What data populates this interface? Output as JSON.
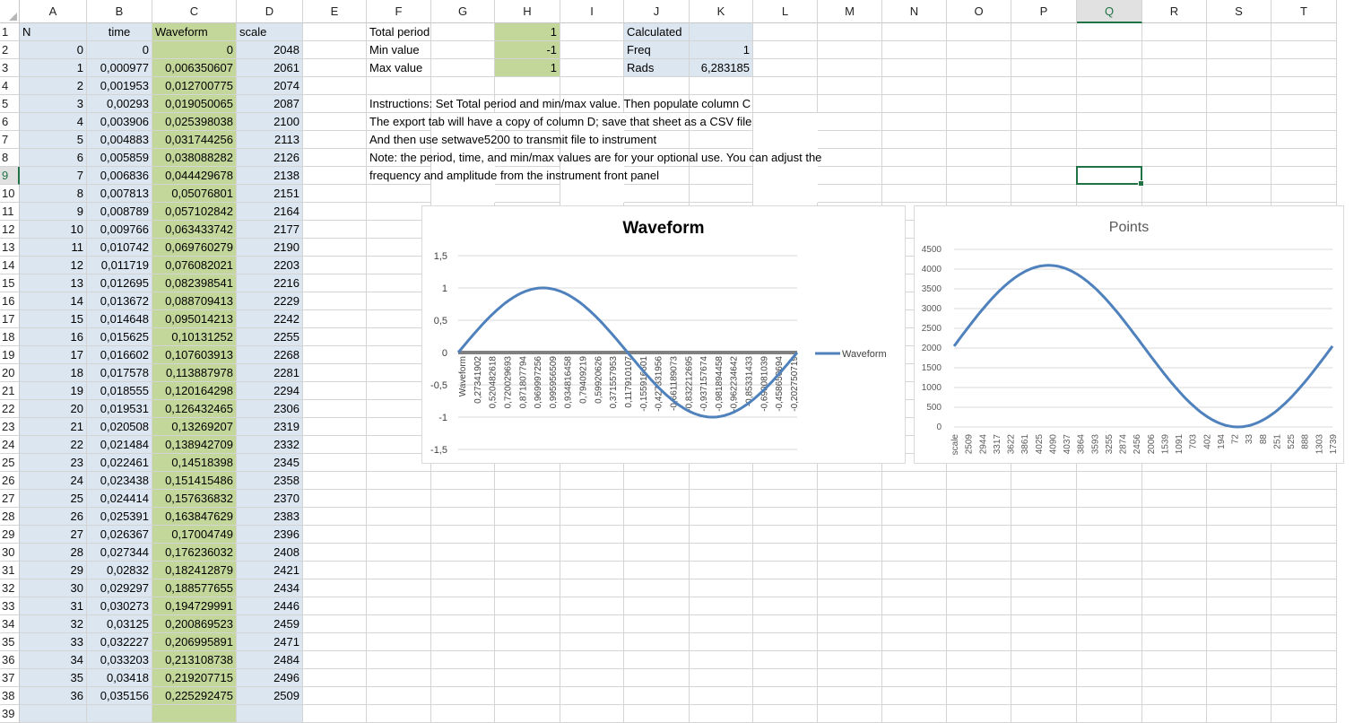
{
  "columns": [
    "A",
    "B",
    "C",
    "D",
    "E",
    "F",
    "G",
    "H",
    "I",
    "J",
    "K",
    "L",
    "M",
    "N",
    "O",
    "P",
    "Q",
    "R",
    "S",
    "T"
  ],
  "selected_column": "Q",
  "selected_row": 9,
  "headers": {
    "n": "N",
    "time": "time",
    "waveform": "Waveform",
    "scale": "scale"
  },
  "rows": [
    [
      "0",
      "0",
      "0",
      "2048"
    ],
    [
      "1",
      "0,000977",
      "0,006350607",
      "2061"
    ],
    [
      "2",
      "0,001953",
      "0,012700775",
      "2074"
    ],
    [
      "3",
      "0,00293",
      "0,019050065",
      "2087"
    ],
    [
      "4",
      "0,003906",
      "0,025398038",
      "2100"
    ],
    [
      "5",
      "0,004883",
      "0,031744256",
      "2113"
    ],
    [
      "6",
      "0,005859",
      "0,038088282",
      "2126"
    ],
    [
      "7",
      "0,006836",
      "0,044429678",
      "2138"
    ],
    [
      "8",
      "0,007813",
      "0,05076801",
      "2151"
    ],
    [
      "9",
      "0,008789",
      "0,057102842",
      "2164"
    ],
    [
      "10",
      "0,009766",
      "0,063433742",
      "2177"
    ],
    [
      "11",
      "0,010742",
      "0,069760279",
      "2190"
    ],
    [
      "12",
      "0,011719",
      "0,076082021",
      "2203"
    ],
    [
      "13",
      "0,012695",
      "0,082398541",
      "2216"
    ],
    [
      "14",
      "0,013672",
      "0,088709413",
      "2229"
    ],
    [
      "15",
      "0,014648",
      "0,095014213",
      "2242"
    ],
    [
      "16",
      "0,015625",
      "0,10131252",
      "2255"
    ],
    [
      "17",
      "0,016602",
      "0,107603913",
      "2268"
    ],
    [
      "18",
      "0,017578",
      "0,113887978",
      "2281"
    ],
    [
      "19",
      "0,018555",
      "0,120164298",
      "2294"
    ],
    [
      "20",
      "0,019531",
      "0,126432465",
      "2306"
    ],
    [
      "21",
      "0,020508",
      "0,13269207",
      "2319"
    ],
    [
      "22",
      "0,021484",
      "0,138942709",
      "2332"
    ],
    [
      "23",
      "0,022461",
      "0,14518398",
      "2345"
    ],
    [
      "24",
      "0,023438",
      "0,151415486",
      "2358"
    ],
    [
      "25",
      "0,024414",
      "0,157636832",
      "2370"
    ],
    [
      "26",
      "0,025391",
      "0,163847629",
      "2383"
    ],
    [
      "27",
      "0,026367",
      "0,17004749",
      "2396"
    ],
    [
      "28",
      "0,027344",
      "0,176236032",
      "2408"
    ],
    [
      "29",
      "0,02832",
      "0,182412879",
      "2421"
    ],
    [
      "30",
      "0,029297",
      "0,188577655",
      "2434"
    ],
    [
      "31",
      "0,030273",
      "0,194729991",
      "2446"
    ],
    [
      "32",
      "0,03125",
      "0,200869523",
      "2459"
    ],
    [
      "33",
      "0,032227",
      "0,206995891",
      "2471"
    ],
    [
      "34",
      "0,033203",
      "0,213108738",
      "2484"
    ],
    [
      "35",
      "0,03418",
      "0,219207715",
      "2496"
    ],
    [
      "36",
      "0,035156",
      "0,225292475",
      "2509"
    ]
  ],
  "params": {
    "total_period_label": "Total period",
    "total_period_value": "1",
    "min_value_label": "Min value",
    "min_value_value": "-1",
    "max_value_label": "Max value",
    "max_value_value": "1"
  },
  "calculated": {
    "title": "Calculated",
    "freq_label": "Freq",
    "freq_value": "1",
    "rads_label": "Rads",
    "rads_value": "6,283185"
  },
  "instructions": [
    "Instructions: Set Total period and min/max value. Then populate column C",
    "The export tab will have a copy of column D; save that sheet as a CSV file",
    "And then use setwave5200 to transmit file to instrument",
    "Note: the period, time, and min/max values are for your optional use.  You can adjust the",
    "frequency and amplitude from the instrument front panel"
  ],
  "chart_data": [
    {
      "type": "line",
      "title": "Waveform",
      "series": [
        {
          "name": "Waveform",
          "function": "sin",
          "periods": 1,
          "amplitude": 1
        }
      ],
      "ylim": [
        -1.5,
        1.5
      ],
      "y_ticks": [
        "1,5",
        "1",
        "0,5",
        "0",
        "-0,5",
        "-1",
        "-1,5"
      ],
      "x_tick_labels": [
        "Waveform",
        "0,27341902",
        "0,520482618",
        "0,720029693",
        "0,871807794",
        "0,969997256",
        "0,995956509",
        "0,934816458",
        "0,79409219",
        "0,59920626",
        "0,371557953",
        "0,117910107",
        "-0,155916601",
        "-0,427331956",
        "-0,661189073",
        "-0,832212695",
        "-0,937157674",
        "-0,981894458",
        "-0,962234642",
        "-0,85331433",
        "-0,690081039",
        "-0,458650694",
        "-0,202750719"
      ],
      "legend": "right",
      "color": "#4f81bd"
    },
    {
      "type": "line",
      "title": "Points",
      "series": [
        {
          "name": "scale",
          "function": "sin",
          "periods": 1,
          "offset": 2048,
          "amplitude": 2047
        }
      ],
      "ylim": [
        0,
        4500
      ],
      "y_ticks": [
        "4500",
        "4000",
        "3500",
        "3000",
        "2500",
        "2000",
        "1500",
        "1000",
        "500",
        "0"
      ],
      "x_tick_labels": [
        "scale",
        "2509",
        "2944",
        "3317",
        "3622",
        "3861",
        "4025",
        "4090",
        "4037",
        "3864",
        "3593",
        "3255",
        "2874",
        "2456",
        "2006",
        "1539",
        "1091",
        "703",
        "402",
        "194",
        "72",
        "33",
        "88",
        "251",
        "525",
        "888",
        "1303",
        "1739"
      ],
      "color": "#4f81bd"
    }
  ]
}
